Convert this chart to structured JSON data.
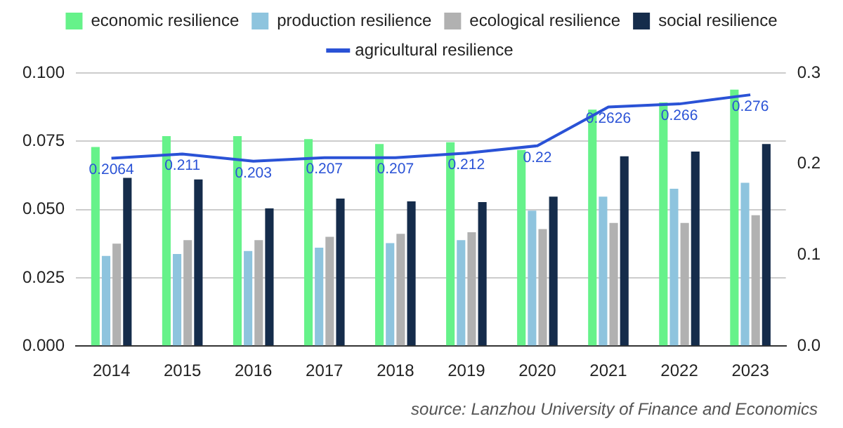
{
  "chart_data": {
    "type": "bar",
    "categories": [
      "2014",
      "2015",
      "2016",
      "2017",
      "2018",
      "2019",
      "2020",
      "2021",
      "2022",
      "2023"
    ],
    "series": [
      {
        "name": "economic resilience",
        "color": "#66f28a",
        "values": [
          0.0729,
          0.0769,
          0.0769,
          0.0758,
          0.074,
          0.0746,
          0.0718,
          0.0866,
          0.0892,
          0.0939
        ]
      },
      {
        "name": "production resilience",
        "color": "#8ec4de",
        "values": [
          0.033,
          0.0337,
          0.0348,
          0.036,
          0.0377,
          0.0388,
          0.0496,
          0.0547,
          0.0576,
          0.0598
        ]
      },
      {
        "name": "ecological resilience",
        "color": "#b1b1b1",
        "values": [
          0.0375,
          0.0388,
          0.0388,
          0.04,
          0.0411,
          0.0417,
          0.0428,
          0.0451,
          0.0451,
          0.0479
        ]
      },
      {
        "name": "social resilience",
        "color": "#152c4b",
        "values": [
          0.0616,
          0.061,
          0.0504,
          0.054,
          0.053,
          0.0527,
          0.0547,
          0.0695,
          0.0712,
          0.074
        ]
      },
      {
        "name": "agricultural resilience",
        "type": "line",
        "axis": "y2",
        "color": "#2a52d6",
        "values": [
          0.2064,
          0.211,
          0.203,
          0.207,
          0.207,
          0.212,
          0.22,
          0.2626,
          0.266,
          0.276
        ],
        "value_labels": [
          "0.2064",
          "0.211",
          "0.203",
          "0.207",
          "0.207",
          "0.212",
          "0.22",
          "0.2626",
          "0.266",
          "0.276"
        ]
      }
    ],
    "ylim": [
      0,
      0.1
    ],
    "yticks": [
      {
        "value": 0,
        "label": "0.000"
      },
      {
        "value": 0.025,
        "label": "0.025"
      },
      {
        "value": 0.05,
        "label": "0.050"
      },
      {
        "value": 0.075,
        "label": "0.075"
      },
      {
        "value": 0.1,
        "label": "0.100"
      }
    ],
    "y2lim": [
      0,
      0.3
    ],
    "y2ticks": [
      {
        "value": 0,
        "label": "0.0"
      },
      {
        "value": 0.1,
        "label": "0.1"
      },
      {
        "value": 0.2,
        "label": "0.2"
      },
      {
        "value": 0.3,
        "label": "0.3"
      }
    ],
    "grid": "y",
    "legend": "top",
    "marker": "none",
    "annotations": [
      "source: Lanzhou University of Finance and Economics"
    ]
  }
}
